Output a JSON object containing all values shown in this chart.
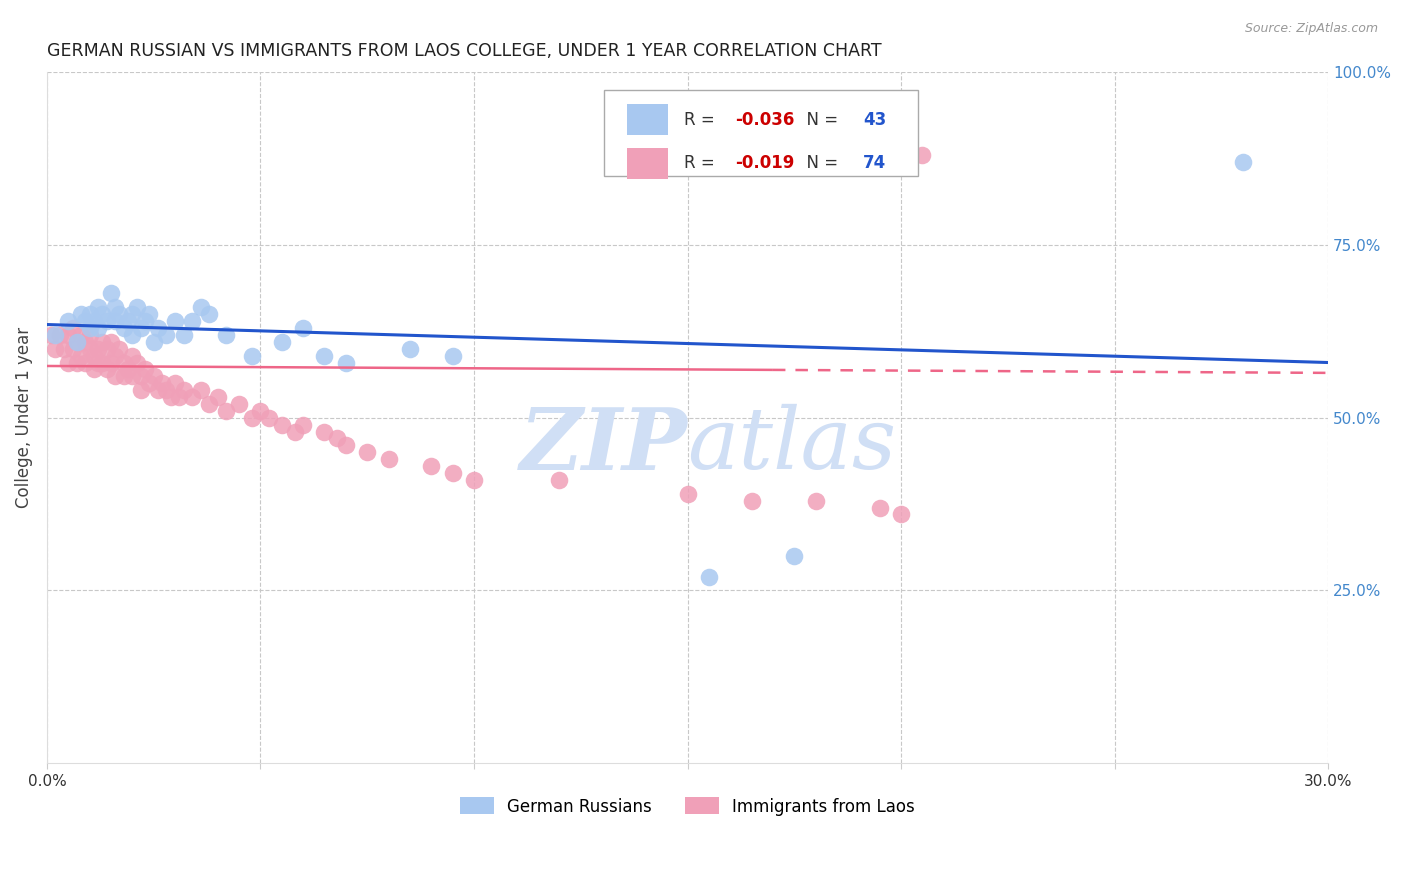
{
  "title": "GERMAN RUSSIAN VS IMMIGRANTS FROM LAOS COLLEGE, UNDER 1 YEAR CORRELATION CHART",
  "source": "Source: ZipAtlas.com",
  "ylabel": "College, Under 1 year",
  "xlim": [
    0.0,
    0.3
  ],
  "ylim": [
    0.0,
    1.0
  ],
  "xticks": [
    0.0,
    0.05,
    0.1,
    0.15,
    0.2,
    0.25,
    0.3
  ],
  "yticks_right": [
    0.0,
    0.25,
    0.5,
    0.75,
    1.0
  ],
  "ytick_labels_right": [
    "",
    "25.0%",
    "50.0%",
    "75.0%",
    "100.0%"
  ],
  "blue_R": "-0.036",
  "blue_N": "43",
  "pink_R": "-0.019",
  "pink_N": "74",
  "blue_color": "#a8c8f0",
  "pink_color": "#f0a0b8",
  "blue_trend_color": "#2255cc",
  "pink_trend_color": "#ee6688",
  "grid_color": "#c8c8c8",
  "watermark_color": "#d0dff5",
  "title_color": "#222222",
  "axis_label_color": "#444444",
  "right_tick_color": "#4488cc",
  "blue_legend_color": "#cc0000",
  "blue_N_color": "#2255cc",
  "pink_legend_color": "#cc0000",
  "pink_N_color": "#2255cc",
  "blue_x": [
    0.002,
    0.005,
    0.007,
    0.008,
    0.009,
    0.01,
    0.01,
    0.011,
    0.012,
    0.012,
    0.013,
    0.014,
    0.015,
    0.016,
    0.016,
    0.017,
    0.018,
    0.019,
    0.02,
    0.02,
    0.021,
    0.022,
    0.023,
    0.024,
    0.025,
    0.026,
    0.028,
    0.03,
    0.032,
    0.034,
    0.036,
    0.038,
    0.042,
    0.048,
    0.055,
    0.06,
    0.065,
    0.07,
    0.085,
    0.095,
    0.155,
    0.175,
    0.28
  ],
  "blue_y": [
    0.62,
    0.64,
    0.61,
    0.65,
    0.64,
    0.63,
    0.65,
    0.64,
    0.63,
    0.66,
    0.65,
    0.64,
    0.68,
    0.64,
    0.66,
    0.65,
    0.63,
    0.64,
    0.65,
    0.62,
    0.66,
    0.63,
    0.64,
    0.65,
    0.61,
    0.63,
    0.62,
    0.64,
    0.62,
    0.64,
    0.66,
    0.65,
    0.62,
    0.59,
    0.61,
    0.63,
    0.59,
    0.58,
    0.6,
    0.59,
    0.27,
    0.3,
    0.87
  ],
  "pink_x": [
    0.001,
    0.002,
    0.003,
    0.004,
    0.005,
    0.005,
    0.006,
    0.006,
    0.007,
    0.007,
    0.008,
    0.008,
    0.009,
    0.009,
    0.01,
    0.01,
    0.011,
    0.011,
    0.012,
    0.012,
    0.013,
    0.013,
    0.014,
    0.014,
    0.015,
    0.015,
    0.016,
    0.016,
    0.017,
    0.018,
    0.018,
    0.019,
    0.02,
    0.02,
    0.021,
    0.022,
    0.022,
    0.023,
    0.024,
    0.025,
    0.026,
    0.027,
    0.028,
    0.029,
    0.03,
    0.031,
    0.032,
    0.034,
    0.036,
    0.038,
    0.04,
    0.042,
    0.045,
    0.048,
    0.05,
    0.052,
    0.055,
    0.058,
    0.06,
    0.065,
    0.068,
    0.07,
    0.075,
    0.08,
    0.09,
    0.095,
    0.1,
    0.12,
    0.15,
    0.165,
    0.18,
    0.195,
    0.2,
    0.205
  ],
  "pink_y": [
    0.62,
    0.6,
    0.62,
    0.6,
    0.62,
    0.58,
    0.63,
    0.6,
    0.61,
    0.58,
    0.62,
    0.59,
    0.61,
    0.58,
    0.62,
    0.6,
    0.59,
    0.57,
    0.6,
    0.58,
    0.61,
    0.58,
    0.6,
    0.57,
    0.61,
    0.58,
    0.59,
    0.56,
    0.6,
    0.58,
    0.56,
    0.57,
    0.59,
    0.56,
    0.58,
    0.56,
    0.54,
    0.57,
    0.55,
    0.56,
    0.54,
    0.55,
    0.54,
    0.53,
    0.55,
    0.53,
    0.54,
    0.53,
    0.54,
    0.52,
    0.53,
    0.51,
    0.52,
    0.5,
    0.51,
    0.5,
    0.49,
    0.48,
    0.49,
    0.48,
    0.47,
    0.46,
    0.45,
    0.44,
    0.43,
    0.42,
    0.41,
    0.41,
    0.39,
    0.38,
    0.38,
    0.37,
    0.36,
    0.88
  ],
  "blue_trend_x0": 0.0,
  "blue_trend_y0": 0.635,
  "blue_trend_x1": 0.3,
  "blue_trend_y1": 0.58,
  "pink_trend_x0": 0.0,
  "pink_trend_y0": 0.575,
  "pink_trend_x1": 0.3,
  "pink_trend_y1": 0.565
}
